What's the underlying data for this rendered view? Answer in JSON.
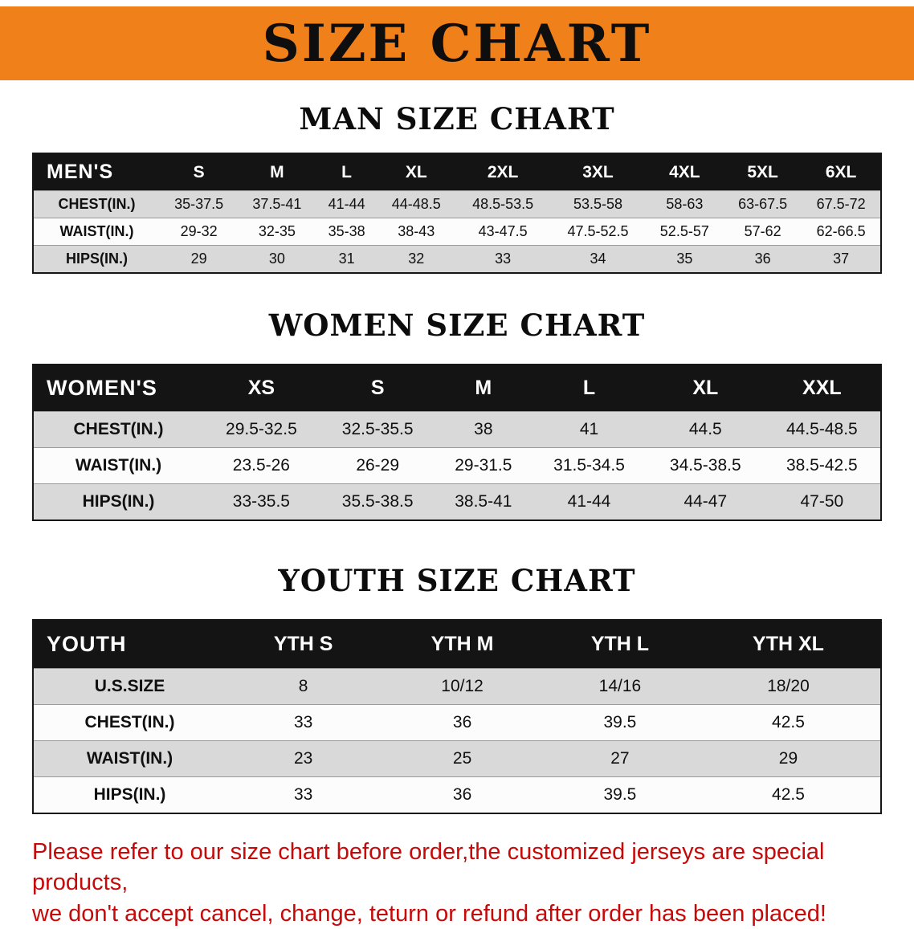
{
  "banner": {
    "title": "SIZE CHART"
  },
  "colors": {
    "banner_bg": "#f08019",
    "table_header_bg": "#141414",
    "row_alt_gray": "#d9d9d9",
    "disclaimer_red": "#c60909"
  },
  "sections": {
    "men": {
      "heading": "MAN SIZE CHART",
      "table": {
        "header": [
          "MEN'S",
          "S",
          "M",
          "L",
          "XL",
          "2XL",
          "3XL",
          "4XL",
          "5XL",
          "6XL"
        ],
        "rows": [
          {
            "label": "CHEST(IN.)",
            "values": [
              "35-37.5",
              "37.5-41",
              "41-44",
              "44-48.5",
              "48.5-53.5",
              "53.5-58",
              "58-63",
              "63-67.5",
              "67.5-72"
            ]
          },
          {
            "label": "WAIST(IN.)",
            "values": [
              "29-32",
              "32-35",
              "35-38",
              "38-43",
              "43-47.5",
              "47.5-52.5",
              "52.5-57",
              "57-62",
              "62-66.5"
            ]
          },
          {
            "label": "HIPS(IN.)",
            "values": [
              "29",
              "30",
              "31",
              "32",
              "33",
              "34",
              "35",
              "36",
              "37"
            ]
          }
        ]
      }
    },
    "women": {
      "heading": "WOMEN SIZE CHART",
      "table": {
        "header": [
          "WOMEN'S",
          "XS",
          "S",
          "M",
          "L",
          "XL",
          "XXL"
        ],
        "rows": [
          {
            "label": "CHEST(IN.)",
            "values": [
              "29.5-32.5",
              "32.5-35.5",
              "38",
              "41",
              "44.5",
              "44.5-48.5"
            ]
          },
          {
            "label": "WAIST(IN.)",
            "values": [
              "23.5-26",
              "26-29",
              "29-31.5",
              "31.5-34.5",
              "34.5-38.5",
              "38.5-42.5"
            ]
          },
          {
            "label": "HIPS(IN.)",
            "values": [
              "33-35.5",
              "35.5-38.5",
              "38.5-41",
              "41-44",
              "44-47",
              "47-50"
            ]
          }
        ]
      }
    },
    "youth": {
      "heading": "YOUTH SIZE CHART",
      "table": {
        "header": [
          "YOUTH",
          "YTH S",
          "YTH M",
          "YTH L",
          "YTH XL"
        ],
        "rows": [
          {
            "label": "U.S.SIZE",
            "values": [
              "8",
              "10/12",
              "14/16",
              "18/20"
            ]
          },
          {
            "label": "CHEST(IN.)",
            "values": [
              "33",
              "36",
              "39.5",
              "42.5"
            ]
          },
          {
            "label": "WAIST(IN.)",
            "values": [
              "23",
              "25",
              "27",
              "29"
            ]
          },
          {
            "label": "HIPS(IN.)",
            "values": [
              "33",
              "36",
              "39.5",
              "42.5"
            ]
          }
        ]
      }
    }
  },
  "disclaimer": {
    "line1": "Please refer to our size chart before order,the customized jerseys are special products,",
    "line2": "we don't accept cancel, change, teturn or refund after order has been placed!"
  }
}
